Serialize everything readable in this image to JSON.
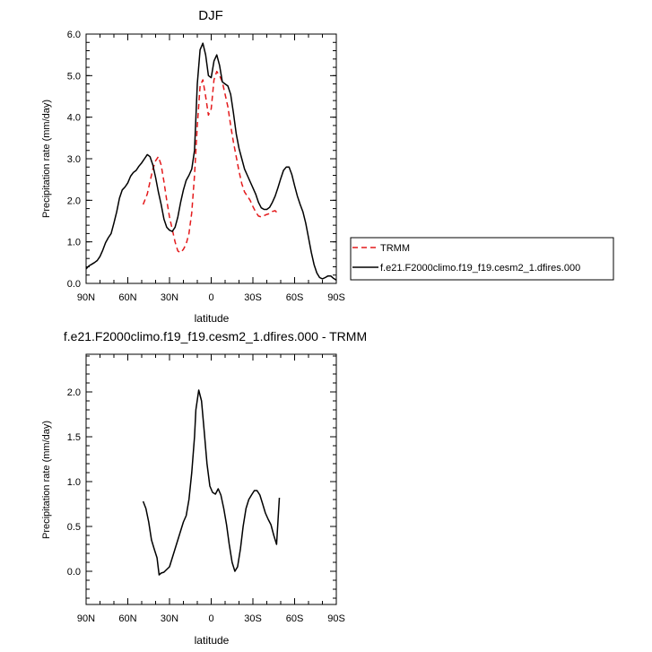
{
  "chart_data": [
    {
      "type": "line",
      "title": "DJF",
      "xlabel": "latitude",
      "ylabel": "Precipitation rate (mm/day)",
      "xlim": [
        90,
        -90
      ],
      "ylim": [
        0,
        6
      ],
      "x_ticks": [
        90,
        60,
        30,
        0,
        -30,
        -60,
        -90
      ],
      "x_tick_labels": [
        "90N",
        "60N",
        "30N",
        "0",
        "30S",
        "60S",
        "90S"
      ],
      "y_ticks": [
        0,
        1,
        2,
        3,
        4,
        5,
        6
      ],
      "y_tick_labels": [
        "0.0",
        "1.0",
        "2.0",
        "3.0",
        "4.0",
        "5.0",
        "6.0"
      ],
      "legend": [
        "TRMM",
        "f.e21.F2000climo.f19_f19.cesm2_1.dfires.000"
      ],
      "series": [
        {
          "name": "TRMM",
          "color": "#e41a1c",
          "dash": "dashed",
          "x": [
            49,
            46,
            44,
            42,
            40,
            38,
            36,
            34,
            32,
            30,
            28,
            26,
            24,
            22,
            20,
            18,
            16,
            14,
            12,
            10,
            8,
            6,
            4,
            2,
            0,
            -2,
            -4,
            -6,
            -8,
            -10,
            -12,
            -14,
            -16,
            -18,
            -20,
            -22,
            -24,
            -26,
            -28,
            -30,
            -32,
            -34,
            -36,
            -38,
            -40,
            -42,
            -44,
            -46,
            -48
          ],
          "y": [
            1.9,
            2.15,
            2.45,
            2.75,
            2.95,
            3.05,
            2.85,
            2.45,
            2.0,
            1.6,
            1.3,
            1.0,
            0.78,
            0.74,
            0.82,
            0.95,
            1.2,
            1.7,
            2.6,
            3.8,
            4.75,
            4.9,
            4.5,
            4.05,
            4.2,
            4.9,
            5.1,
            5.0,
            4.85,
            4.55,
            4.25,
            3.8,
            3.4,
            3.05,
            2.7,
            2.4,
            2.2,
            2.1,
            2.0,
            1.85,
            1.72,
            1.62,
            1.6,
            1.63,
            1.66,
            1.68,
            1.73,
            1.75,
            1.68
          ]
        },
        {
          "name": "f.e21.F2000climo.f19_f19.cesm2_1.dfires.000",
          "color": "#000000",
          "dash": "solid",
          "x": [
            90,
            88,
            86,
            84,
            82,
            80,
            78,
            76,
            74,
            72,
            70,
            68,
            66,
            64,
            62,
            60,
            58,
            56,
            54,
            52,
            50,
            48,
            46,
            44,
            42,
            40,
            38,
            36,
            34,
            32,
            30,
            28,
            26,
            24,
            22,
            20,
            18,
            16,
            14,
            12,
            10,
            8,
            6,
            4,
            2,
            0,
            -2,
            -4,
            -6,
            -8,
            -10,
            -12,
            -14,
            -16,
            -18,
            -20,
            -22,
            -24,
            -26,
            -28,
            -30,
            -32,
            -34,
            -36,
            -38,
            -40,
            -42,
            -44,
            -46,
            -48,
            -50,
            -52,
            -54,
            -56,
            -58,
            -60,
            -62,
            -64,
            -66,
            -68,
            -70,
            -72,
            -74,
            -76,
            -78,
            -80,
            -82,
            -84,
            -86,
            -88,
            -90
          ],
          "y": [
            0.35,
            0.42,
            0.46,
            0.5,
            0.55,
            0.65,
            0.8,
            0.98,
            1.1,
            1.2,
            1.45,
            1.72,
            2.05,
            2.25,
            2.32,
            2.42,
            2.58,
            2.67,
            2.72,
            2.82,
            2.9,
            3.0,
            3.1,
            3.05,
            2.85,
            2.55,
            2.2,
            1.9,
            1.55,
            1.35,
            1.28,
            1.25,
            1.35,
            1.6,
            1.95,
            2.25,
            2.48,
            2.6,
            2.75,
            3.2,
            4.8,
            5.62,
            5.78,
            5.5,
            5.0,
            4.95,
            5.35,
            5.5,
            5.25,
            4.85,
            4.8,
            4.75,
            4.55,
            4.1,
            3.6,
            3.25,
            3.0,
            2.75,
            2.6,
            2.45,
            2.3,
            2.15,
            1.95,
            1.82,
            1.78,
            1.78,
            1.83,
            1.95,
            2.1,
            2.3,
            2.52,
            2.72,
            2.8,
            2.8,
            2.62,
            2.35,
            2.1,
            1.9,
            1.72,
            1.45,
            1.1,
            0.75,
            0.45,
            0.25,
            0.14,
            0.11,
            0.14,
            0.18,
            0.18,
            0.12,
            0.08
          ]
        }
      ]
    },
    {
      "type": "line",
      "title": "f.e21.F2000climo.f19_f19.cesm2_1.dfires.000 - TRMM",
      "xlabel": "latitude",
      "ylabel": "Precipitation rate (mm/day)",
      "xlim": [
        90,
        -90
      ],
      "ylim": [
        -0.37,
        2.42
      ],
      "x_ticks": [
        90,
        60,
        30,
        0,
        -30,
        -60,
        -90
      ],
      "x_tick_labels": [
        "90N",
        "60N",
        "30N",
        "0",
        "30S",
        "60S",
        "90S"
      ],
      "y_ticks": [
        0,
        0.5,
        1,
        1.5,
        2
      ],
      "y_tick_labels": [
        "0.0",
        "0.5",
        "1.0",
        "1.5",
        "2.0"
      ],
      "series": [
        {
          "name": "f.e21.F2000climo.f19_f19.cesm2_1.dfires.000 - TRMM",
          "color": "#000000",
          "dash": "solid",
          "x": [
            49,
            47,
            45,
            43,
            41,
            39,
            37.5,
            36,
            34,
            32,
            30,
            28,
            26,
            24,
            22,
            20,
            18,
            16,
            14,
            12,
            11,
            9,
            7,
            5,
            3,
            1,
            -1,
            -3,
            -5,
            -7,
            -9,
            -11,
            -13,
            -15,
            -17,
            -19,
            -21,
            -23,
            -25,
            -27,
            -29,
            -31,
            -33,
            -35,
            -37,
            -39,
            -41,
            -43,
            -45,
            -47,
            -49
          ],
          "y": [
            0.78,
            0.7,
            0.55,
            0.35,
            0.25,
            0.15,
            -0.04,
            -0.02,
            -0.01,
            0.02,
            0.05,
            0.15,
            0.25,
            0.35,
            0.45,
            0.55,
            0.62,
            0.8,
            1.1,
            1.5,
            1.8,
            2.02,
            1.9,
            1.55,
            1.2,
            0.95,
            0.88,
            0.86,
            0.92,
            0.85,
            0.7,
            0.52,
            0.3,
            0.1,
            0.0,
            0.05,
            0.25,
            0.5,
            0.7,
            0.8,
            0.85,
            0.9,
            0.9,
            0.85,
            0.75,
            0.65,
            0.58,
            0.52,
            0.4,
            0.3,
            0.82
          ]
        }
      ]
    }
  ]
}
